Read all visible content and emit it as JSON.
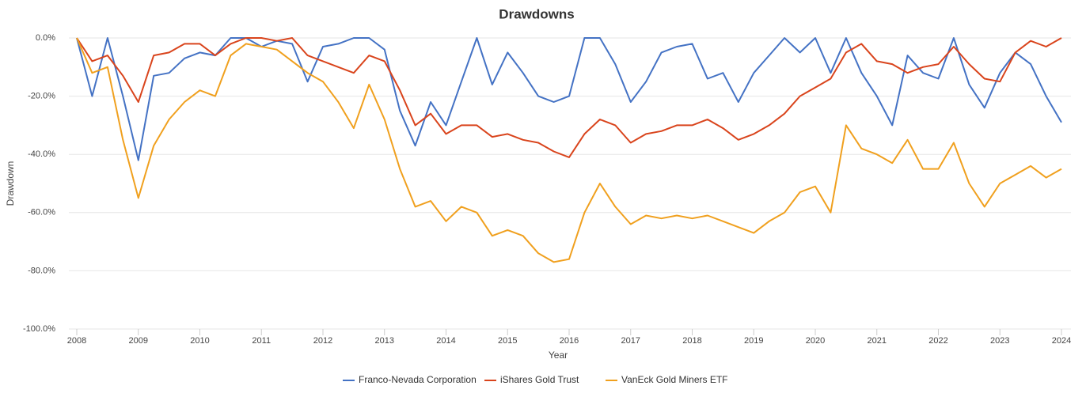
{
  "chart_data": {
    "type": "line",
    "title": "Drawdowns",
    "xlabel": "Year",
    "ylabel": "Drawdown",
    "x": [
      2008,
      2008.25,
      2008.5,
      2008.75,
      2009,
      2009.25,
      2009.5,
      2009.75,
      2010,
      2010.25,
      2010.5,
      2010.75,
      2011,
      2011.25,
      2011.5,
      2011.75,
      2012,
      2012.25,
      2012.5,
      2012.75,
      2013,
      2013.25,
      2013.5,
      2013.75,
      2014,
      2014.25,
      2014.5,
      2014.75,
      2015,
      2015.25,
      2015.5,
      2015.75,
      2016,
      2016.25,
      2016.5,
      2016.75,
      2017,
      2017.25,
      2017.5,
      2017.75,
      2018,
      2018.25,
      2018.5,
      2018.75,
      2019,
      2019.25,
      2019.5,
      2019.75,
      2020,
      2020.25,
      2020.5,
      2020.75,
      2021,
      2021.25,
      2021.5,
      2021.75,
      2022,
      2022.25,
      2022.5,
      2022.75,
      2023,
      2023.25,
      2023.5,
      2023.75,
      2024
    ],
    "series": [
      {
        "name": "Franco-Nevada Corporation",
        "color": "#4472c4",
        "values": [
          0,
          -20,
          0,
          -20,
          -42,
          -13,
          -12,
          -7,
          -5,
          -6,
          0,
          0,
          -3,
          -1,
          -2,
          -15,
          -3,
          -2,
          0,
          0,
          -4,
          -25,
          -37,
          -22,
          -30,
          -15,
          0,
          -16,
          -5,
          -12,
          -20,
          -22,
          -20,
          0,
          0,
          -9,
          -22,
          -15,
          -5,
          -3,
          -2,
          -14,
          -12,
          -22,
          -12,
          -6,
          0,
          -5,
          0,
          -12,
          0,
          -12,
          -20,
          -30,
          -6,
          -12,
          -14,
          0,
          -16,
          -24,
          -12,
          -5,
          -9,
          -20,
          -29
        ]
      },
      {
        "name": "iShares Gold Trust",
        "color": "#d9441c",
        "values": [
          0,
          -8,
          -6,
          -13,
          -22,
          -6,
          -5,
          -2,
          -2,
          -6,
          -2,
          0,
          0,
          -1,
          0,
          -6,
          -8,
          -10,
          -12,
          -6,
          -8,
          -18,
          -30,
          -26,
          -33,
          -30,
          -30,
          -34,
          -33,
          -35,
          -36,
          -39,
          -41,
          -33,
          -28,
          -30,
          -36,
          -33,
          -32,
          -30,
          -30,
          -28,
          -31,
          -35,
          -33,
          -30,
          -26,
          -20,
          -17,
          -14,
          -5,
          -2,
          -8,
          -9,
          -12,
          -10,
          -9,
          -3,
          -9,
          -14,
          -15,
          -5,
          -1,
          -3,
          0
        ]
      },
      {
        "name": "VanEck Gold Miners ETF",
        "color": "#f0a01e",
        "values": [
          0,
          -12,
          -10,
          -35,
          -55,
          -37,
          -28,
          -22,
          -18,
          -20,
          -6,
          -2,
          -3,
          -4,
          -8,
          -12,
          -15,
          -22,
          -31,
          -16,
          -28,
          -45,
          -58,
          -56,
          -63,
          -58,
          -60,
          -68,
          -66,
          -68,
          -74,
          -77,
          -76,
          -60,
          -50,
          -58,
          -64,
          -61,
          -62,
          -61,
          -62,
          -61,
          -63,
          -65,
          -67,
          -63,
          -60,
          -53,
          -51,
          -60,
          -30,
          -38,
          -40,
          -43,
          -35,
          -45,
          -45,
          -36,
          -50,
          -58,
          -50,
          -47,
          -44,
          -48,
          -45
        ]
      }
    ],
    "xlim": [
      2008,
      2024
    ],
    "xticks": [
      2008,
      2009,
      2010,
      2011,
      2012,
      2013,
      2014,
      2015,
      2016,
      2017,
      2018,
      2019,
      2020,
      2021,
      2022,
      2023,
      2024
    ],
    "ylim": [
      -100,
      0
    ],
    "yticks": [
      {
        "value": 0,
        "label": "0.0%"
      },
      {
        "value": -20,
        "label": "-20.0%"
      },
      {
        "value": -40,
        "label": "-40.0%"
      },
      {
        "value": -60,
        "label": "-60.0%"
      },
      {
        "value": -80,
        "label": "-80.0%"
      },
      {
        "value": -100,
        "label": "-100.0%"
      }
    ],
    "grid": true,
    "legend": "bottom"
  }
}
